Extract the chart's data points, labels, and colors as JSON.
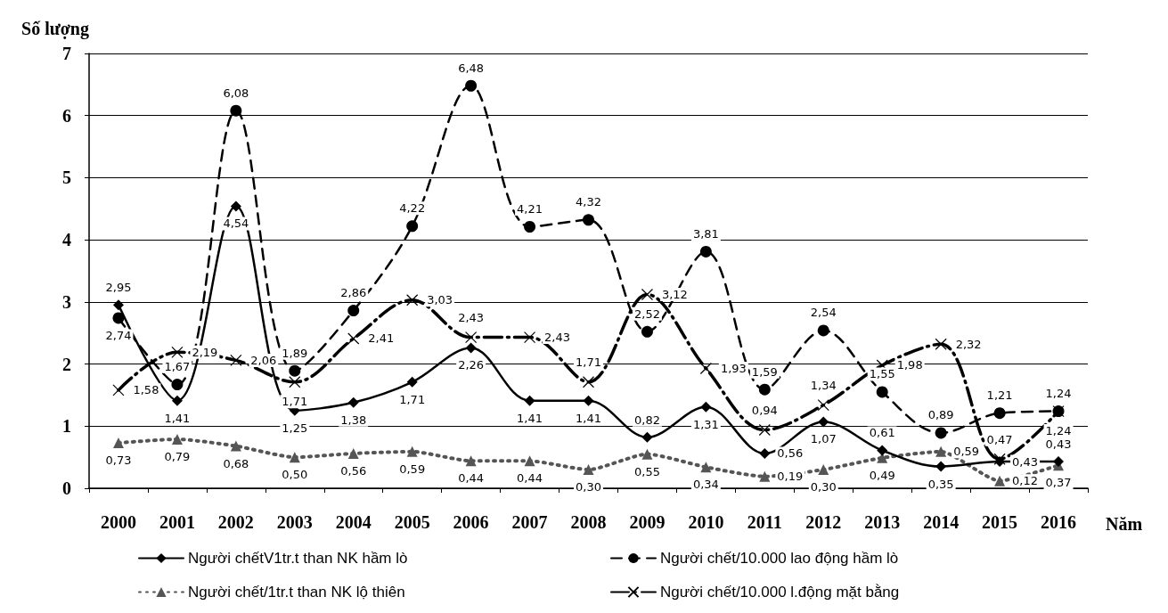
{
  "chart_data": {
    "type": "line",
    "ylabel": "Số lượng",
    "xlabel": "Năm",
    "categories": [
      "2000",
      "2001",
      "2002",
      "2003",
      "2004",
      "2005",
      "2006",
      "2007",
      "2008",
      "2009",
      "2010",
      "2011",
      "2012",
      "2013",
      "2014",
      "2015",
      "2016"
    ],
    "ylim": [
      0,
      7
    ],
    "yticks": [
      0,
      1,
      2,
      3,
      4,
      5,
      6,
      7
    ],
    "grid": "y",
    "legend": "bottom",
    "series": [
      {
        "name": "Người chếtV1tr.t than NK hầm lò",
        "color": "#000000",
        "marker": "diamond",
        "line_style": "solid",
        "values": [
          2.95,
          1.41,
          4.54,
          1.25,
          1.38,
          1.71,
          2.26,
          1.41,
          1.41,
          0.82,
          1.31,
          0.56,
          1.07,
          0.61,
          0.35,
          0.43,
          0.43
        ],
        "value_labels": [
          "2,95",
          "1,41",
          "4,54",
          "1,25",
          "1,38",
          "1,71",
          "2,26",
          "1,41",
          "1,41",
          "0,82",
          "1,31",
          "0,56",
          "1,07",
          "0,61",
          "0,35",
          "0,43",
          "0,43"
        ]
      },
      {
        "name": "Người chết/10.000 lao động hầm lò",
        "color": "#000000",
        "marker": "circle",
        "line_style": "dashed",
        "values": [
          2.74,
          1.67,
          6.08,
          1.89,
          2.86,
          4.22,
          6.48,
          4.21,
          4.32,
          2.52,
          3.81,
          1.59,
          2.54,
          1.55,
          0.89,
          1.21,
          1.24
        ],
        "value_labels": [
          "2,74",
          "1,67",
          "6,08",
          "1,89",
          "2,86",
          "4,22",
          "6,48",
          "4,21",
          "4,32",
          "2,52",
          "3,81",
          "1,59",
          "2,54",
          "1,55",
          "0,89",
          "1,21",
          "1,24"
        ]
      },
      {
        "name": "Người chết/1tr.t than NK lộ thiên",
        "color": "#555555",
        "marker": "triangle",
        "line_style": "dotted",
        "values": [
          0.73,
          0.79,
          0.68,
          0.5,
          0.56,
          0.59,
          0.44,
          0.44,
          0.3,
          0.55,
          0.34,
          0.19,
          0.3,
          0.49,
          0.59,
          0.12,
          0.37
        ],
        "value_labels": [
          "0,73",
          "0,79",
          "0,68",
          "0,50",
          "0,56",
          "0,59",
          "0,44",
          "0,44",
          "0,30",
          "0,55",
          "0,34",
          "0,19",
          "0,30",
          "0,49",
          "0,59",
          "0,12",
          "0,37"
        ]
      },
      {
        "name": "Người chết/10.000 l.động mặt bằng",
        "color": "#000000",
        "marker": "cross",
        "line_style": "dashdot",
        "values": [
          1.58,
          2.19,
          2.06,
          1.71,
          2.41,
          3.03,
          2.43,
          2.43,
          1.71,
          3.12,
          1.93,
          0.94,
          1.34,
          1.98,
          2.32,
          0.47,
          1.24
        ],
        "value_labels": [
          "1,58",
          "2,19",
          "2,06",
          "1,71",
          "2,41",
          "3,03",
          "2,43",
          "2,43",
          "1,71",
          "3,12",
          "1,93",
          "0,94",
          "1,34",
          "1,98",
          "2,32",
          "0,47",
          "1,24"
        ]
      }
    ]
  }
}
